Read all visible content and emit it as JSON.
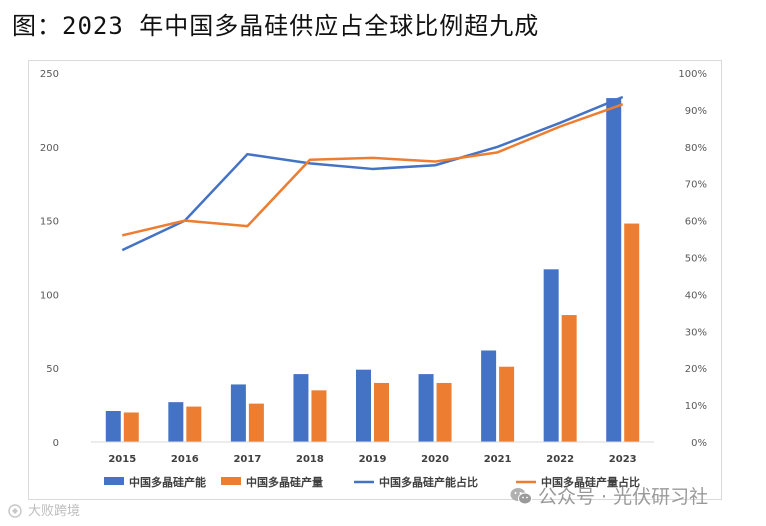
{
  "title": "图：2023 年中国多晶硅供应占全球比例超九成",
  "chart_data": {
    "type": "bar",
    "categories": [
      "2015",
      "2016",
      "2017",
      "2018",
      "2019",
      "2020",
      "2021",
      "2022",
      "2023"
    ],
    "series": [
      {
        "name": "中国多晶硅产能",
        "type": "bar",
        "axis": "left",
        "color": "#4472C4",
        "values": [
          21,
          27,
          39,
          46,
          49,
          46,
          62,
          117,
          233
        ]
      },
      {
        "name": "中国多晶硅产量",
        "type": "bar",
        "axis": "left",
        "color": "#ED7D31",
        "values": [
          20,
          24,
          26,
          35,
          40,
          40,
          51,
          86,
          148
        ]
      },
      {
        "name": "中国多晶硅产能占比",
        "type": "line",
        "axis": "right",
        "color": "#4472C4",
        "values": [
          0.52,
          0.6,
          0.78,
          0.755,
          0.74,
          0.75,
          0.8,
          0.865,
          0.935
        ]
      },
      {
        "name": "中国多晶硅产量占比",
        "type": "line",
        "axis": "right",
        "color": "#ED7D31",
        "values": [
          0.56,
          0.6,
          0.585,
          0.765,
          0.77,
          0.76,
          0.785,
          0.855,
          0.915
        ]
      }
    ],
    "y_left": {
      "ylim": [
        0,
        250
      ],
      "ticks": [
        "0",
        "50",
        "100",
        "150",
        "200",
        "250"
      ]
    },
    "y_right": {
      "ylim": [
        0,
        1
      ],
      "ticks": [
        "0%",
        "10%",
        "20%",
        "30%",
        "40%",
        "50%",
        "60%",
        "70%",
        "80%",
        "90%",
        "100%"
      ]
    },
    "grid": false,
    "legend_position": "bottom"
  },
  "watermarks": {
    "left": "大败跨境",
    "right": "公众号 · 光伏研习社"
  }
}
